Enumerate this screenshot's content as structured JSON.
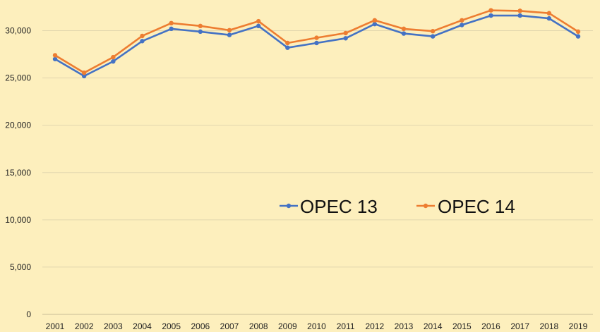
{
  "chart_data": {
    "type": "line",
    "title": "",
    "xlabel": "",
    "ylabel": "",
    "x": [
      "2001",
      "2002",
      "2003",
      "2004",
      "2005",
      "2006",
      "2007",
      "2008",
      "2009",
      "2010",
      "2011",
      "2012",
      "2013",
      "2014",
      "2015",
      "2016",
      "2017",
      "2018",
      "2019"
    ],
    "ylim": [
      0,
      32500
    ],
    "yticks": [
      0,
      5000,
      10000,
      15000,
      20000,
      25000,
      30000
    ],
    "ytick_labels": [
      "0",
      "5,000",
      "10,000",
      "15,000",
      "20,000",
      "25,000",
      "30,000"
    ],
    "grid": true,
    "legend_position": "center-right",
    "series": [
      {
        "name": "OPEC 13",
        "color": "#4472c4",
        "values": [
          27000,
          25200,
          26750,
          28900,
          30200,
          29900,
          29550,
          30500,
          28200,
          28700,
          29200,
          30700,
          29700,
          29400,
          30600,
          31600,
          31600,
          31300,
          29400
        ]
      },
      {
        "name": "OPEC 14",
        "color": "#ed7d31",
        "values": [
          27400,
          25550,
          27200,
          29450,
          30800,
          30500,
          30050,
          31000,
          28700,
          29250,
          29750,
          31100,
          30200,
          29950,
          31100,
          32150,
          32100,
          31850,
          29900
        ]
      }
    ]
  }
}
